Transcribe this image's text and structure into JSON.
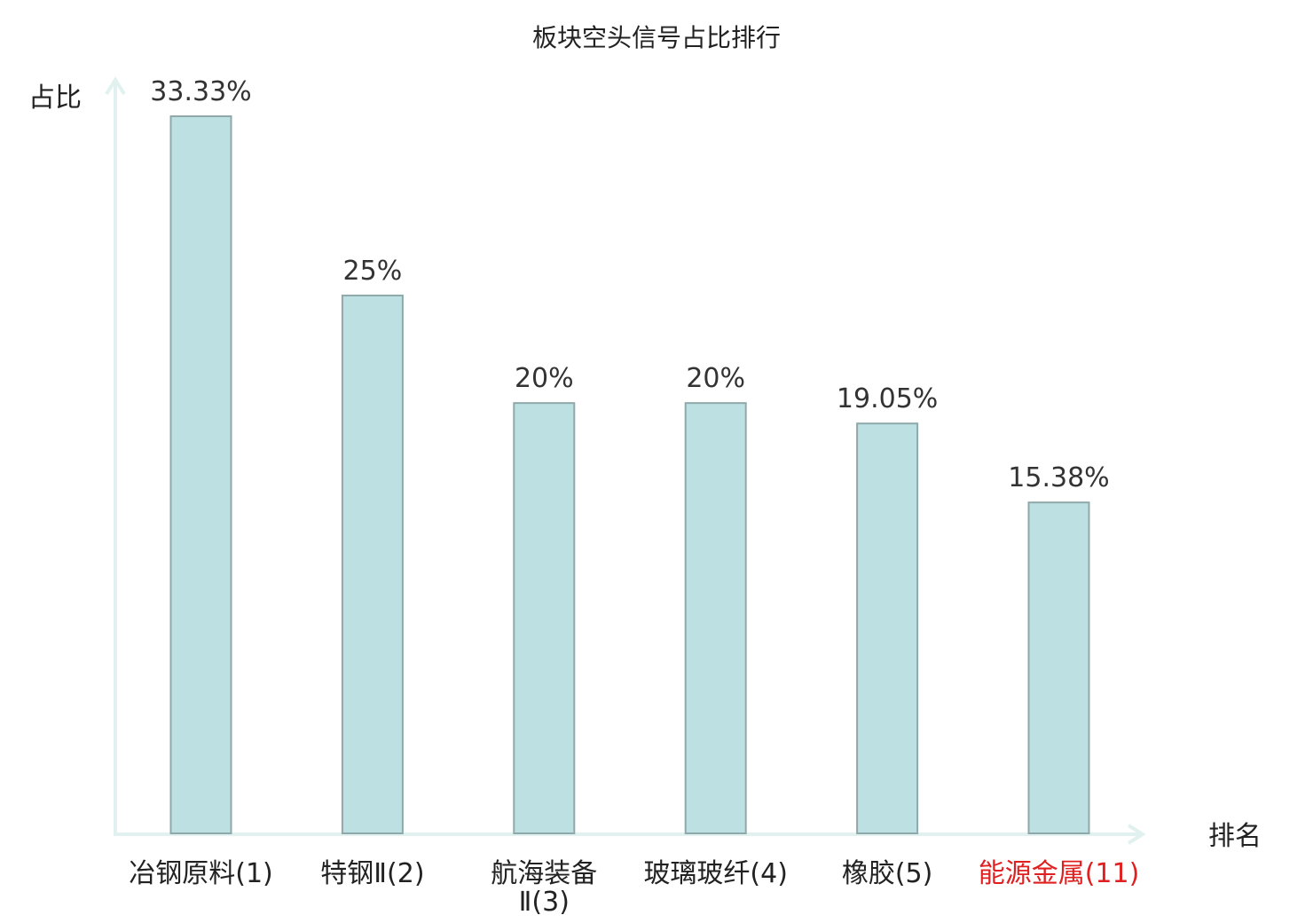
{
  "chart_data": {
    "type": "bar",
    "title": "板块空头信号占比排行",
    "ylabel": "占比",
    "xlabel": "排名",
    "ylim": [
      0,
      35
    ],
    "grid": false,
    "categories": [
      {
        "lines": [
          "冶钢原料(1)"
        ],
        "highlight": false
      },
      {
        "lines": [
          "特钢Ⅱ(2)"
        ],
        "highlight": false
      },
      {
        "lines": [
          "航海装备",
          "Ⅱ(3)"
        ],
        "highlight": false
      },
      {
        "lines": [
          "玻璃玻纤(4)"
        ],
        "highlight": false
      },
      {
        "lines": [
          "橡胶(5)"
        ],
        "highlight": false
      },
      {
        "lines": [
          "能源金属(11)"
        ],
        "highlight": true
      }
    ],
    "values": [
      33.33,
      25,
      20,
      20,
      19.05,
      15.38
    ],
    "value_labels": [
      "33.33%",
      "25%",
      "20%",
      "20%",
      "19.05%",
      "15.38%"
    ],
    "colors": {
      "bar_fill": "#bde0e2",
      "bar_stroke": "#8fa9aa",
      "axis": "#e0f1ef",
      "highlight_text": "#e02020"
    }
  }
}
